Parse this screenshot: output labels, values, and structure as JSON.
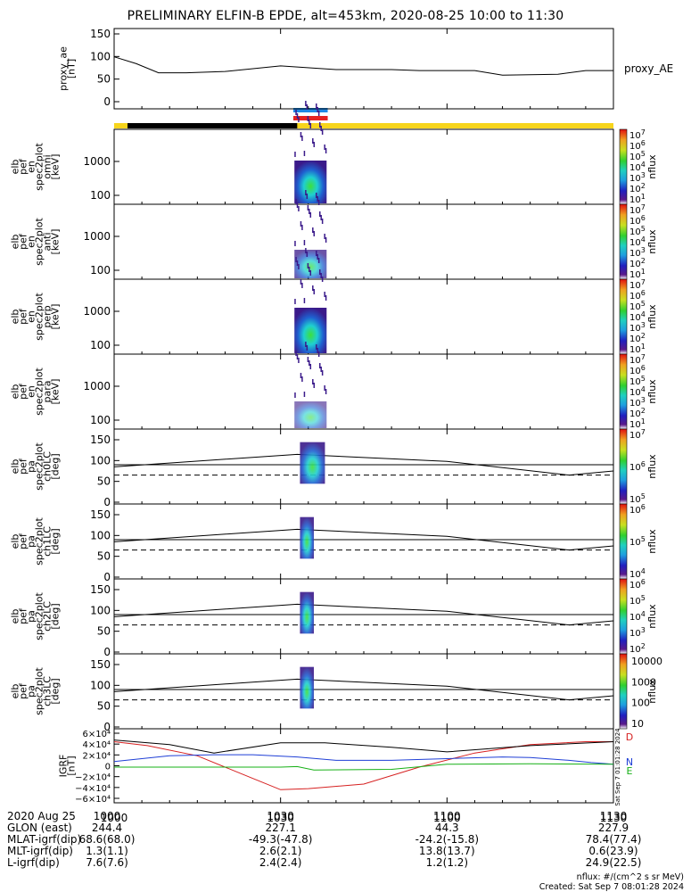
{
  "title": "PRELIMINARY ELFIN-B EPDE, alt=453km, 2020-08-25 10:00 to 11:30",
  "x_axis": {
    "tick_labels": [
      "1000",
      "1030",
      "1100",
      "1130"
    ]
  },
  "panels": [
    {
      "id": "proxy_ae",
      "ylabel_lines": [
        "proxy_ae",
        "[nT]"
      ],
      "yticks": [
        "150",
        "100",
        "50",
        "0"
      ],
      "right_label": "proxy_AE"
    },
    {
      "id": "omni",
      "ylabel_lines": [
        "elb",
        "pef",
        "en",
        "spec2plot",
        "omni",
        "[keV]"
      ],
      "yticks": [
        "1000",
        "100"
      ],
      "cbar_ticks": [
        "10",
        "10",
        "10",
        "10",
        "10",
        "10",
        "10",
        "10",
        "10"
      ],
      "cbar_exps": [
        "7",
        "6",
        "5",
        "4",
        "3",
        "2",
        "1"
      ],
      "cbar_label": "nflux"
    },
    {
      "id": "anti",
      "ylabel_lines": [
        "elb",
        "pef",
        "en",
        "spec2plot",
        "anti",
        "[keV]"
      ],
      "yticks": [
        "1000",
        "100"
      ],
      "cbar_exps": [
        "7",
        "6",
        "5",
        "4",
        "3",
        "2",
        "1"
      ],
      "cbar_label": "nflux"
    },
    {
      "id": "perp",
      "ylabel_lines": [
        "elb",
        "pef",
        "en",
        "spec2plot",
        "perp",
        "[keV]"
      ],
      "yticks": [
        "1000",
        "100"
      ],
      "cbar_exps": [
        "7",
        "6",
        "5",
        "4",
        "3",
        "2",
        "1"
      ],
      "cbar_label": "nflux"
    },
    {
      "id": "para",
      "ylabel_lines": [
        "elb",
        "pef",
        "en",
        "spec2plot",
        "para",
        "[keV]"
      ],
      "yticks": [
        "1000",
        "100"
      ],
      "cbar_exps": [
        "7",
        "6",
        "5",
        "4",
        "3",
        "2",
        "1"
      ],
      "cbar_label": "nflux"
    },
    {
      "id": "ch0LC",
      "ylabel_lines": [
        "elb",
        "pef",
        "pa",
        "spec2plot",
        "ch0LC",
        "[deg]"
      ],
      "yticks": [
        "150",
        "100",
        "50",
        "0"
      ],
      "cbar_exps": [
        "7",
        "6",
        "5"
      ],
      "cbar_label": "nflux"
    },
    {
      "id": "ch1LC",
      "ylabel_lines": [
        "elb",
        "pef",
        "pa",
        "spec2plot",
        "ch1LC",
        "[deg]"
      ],
      "yticks": [
        "150",
        "100",
        "50",
        "0"
      ],
      "cbar_exps": [
        "6",
        "5",
        "4"
      ],
      "cbar_label": "nflux"
    },
    {
      "id": "ch2LC",
      "ylabel_lines": [
        "elb",
        "pef",
        "pa",
        "spec2plot",
        "ch2LC",
        "[deg]"
      ],
      "yticks": [
        "150",
        "100",
        "50",
        "0"
      ],
      "cbar_exps": [
        "6",
        "5",
        "4",
        "3",
        "2"
      ],
      "cbar_label": "nflux"
    },
    {
      "id": "ch3LC",
      "ylabel_lines": [
        "elb",
        "pef",
        "pa",
        "spec2plot",
        "ch3LC",
        "[deg]"
      ],
      "yticks": [
        "150",
        "100",
        "50",
        "0"
      ],
      "cbar_plain": [
        "10000",
        "1000",
        "100",
        "10"
      ],
      "cbar_label": "nflux"
    },
    {
      "id": "igrf",
      "ylabel_lines": [
        "IGRF",
        "[nT]"
      ],
      "yticks": [
        "6×10⁴",
        "4×10⁴",
        "2×10⁴",
        "0",
        "−2×10⁴",
        "−4×10⁴",
        "−6×10⁴"
      ],
      "legend": [
        "D",
        "N",
        "E"
      ],
      "side_stamp": "Sat Sep  7 01:01:28 2024"
    }
  ],
  "footer": {
    "row_labels": [
      "2020 Aug 25",
      "GLON (east)",
      "MLAT-igrf(dip)",
      "MLT-igrf(dip)",
      "L-igrf(dip)"
    ],
    "columns": [
      [
        "1000",
        "244.4",
        "68.6(68.0)",
        "1.3(1.1)",
        "7.6(7.6)"
      ],
      [
        "1030",
        "227.1",
        "-49.3(-47.8)",
        "2.6(2.1)",
        "2.4(2.4)"
      ],
      [
        "1100",
        "44.3",
        "-24.2(-15.8)",
        "13.8(13.7)",
        "1.2(1.2)"
      ],
      [
        "1130",
        "227.9",
        "78.4(77.4)",
        "0.6(23.9)",
        "24.9(22.5)"
      ]
    ],
    "units_note": "nflux: #/(cm^2 s sr MeV)",
    "created": "Created: Sat Sep  7 08:01:28 2024"
  },
  "chart_data": [
    {
      "type": "line",
      "panel": "proxy_ae",
      "ylim": [
        0,
        150
      ],
      "x_minutes": [
        0,
        4,
        8,
        13,
        20,
        30,
        40,
        45,
        50,
        55,
        60,
        65,
        70,
        80,
        85,
        90
      ],
      "values": [
        100,
        85,
        65,
        65,
        68,
        80,
        72,
        72,
        72,
        70,
        70,
        70,
        60,
        62,
        70,
        70
      ]
    },
    {
      "type": "line",
      "panel": "igrf",
      "ylim": [
        -60000,
        60000
      ],
      "series": [
        {
          "name": "D",
          "x_minutes": [
            0,
            6,
            15,
            25,
            30,
            35,
            45,
            55,
            65,
            75,
            85,
            90
          ],
          "values": [
            45000,
            38000,
            20000,
            -20000,
            -40000,
            -38000,
            -30000,
            0,
            25000,
            40000,
            45000,
            45000
          ]
        },
        {
          "name": "N",
          "x_minutes": [
            0,
            10,
            18,
            25,
            33,
            40,
            50,
            60,
            70,
            75,
            82,
            86,
            90
          ],
          "values": [
            10000,
            20000,
            22000,
            22000,
            18000,
            12000,
            12000,
            15000,
            18000,
            17000,
            12000,
            8000,
            5000
          ]
        },
        {
          "name": "E",
          "x_minutes": [
            0,
            20,
            30,
            33,
            36,
            50,
            60,
            75,
            90
          ],
          "values": [
            0,
            0,
            0,
            1000,
            -5000,
            -4000,
            5000,
            6000,
            5000
          ]
        },
        {
          "name": "total",
          "x_minutes": [
            0,
            10,
            18,
            30,
            38,
            50,
            60,
            75,
            90
          ],
          "values": [
            48000,
            40000,
            25000,
            43000,
            43000,
            35000,
            27000,
            38000,
            45000
          ]
        }
      ]
    }
  ],
  "colors": {
    "dark_bar": "#000000",
    "sun_bar": "#f7d51c",
    "blue_marker": "#1e88e5",
    "red_marker": "#e52222",
    "d_line": "#d62020",
    "n_line": "#1f3fd6",
    "e_line": "#16b016"
  }
}
